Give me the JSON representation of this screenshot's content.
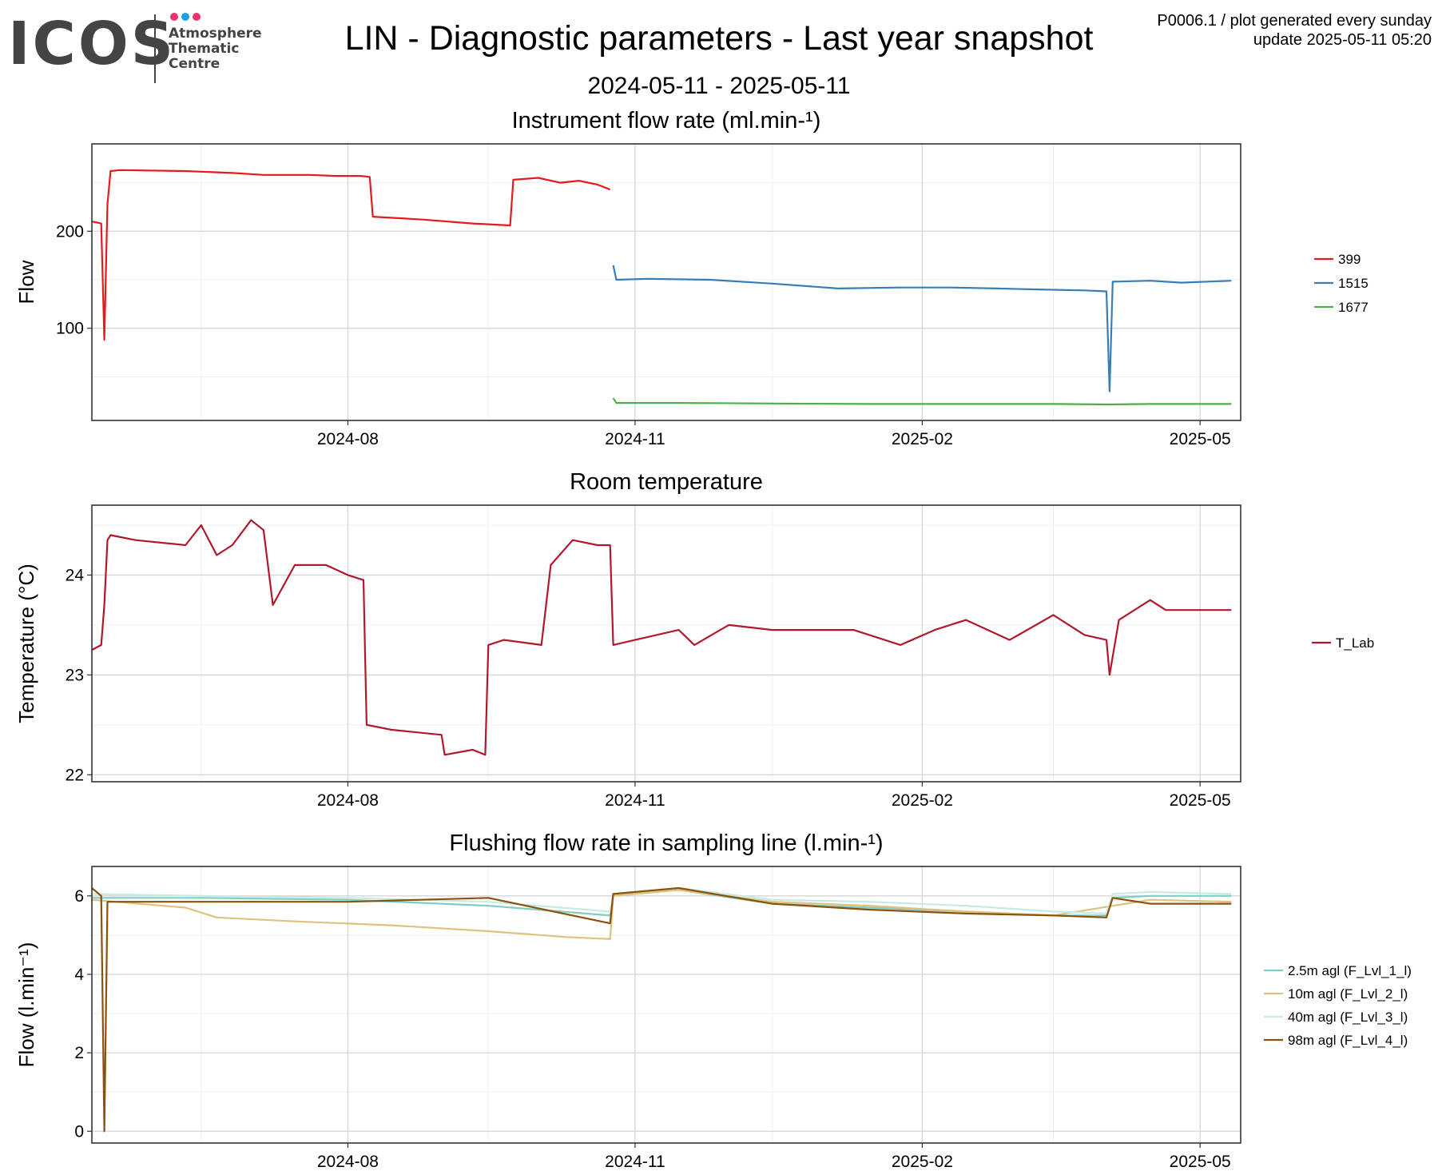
{
  "logo": {
    "text": "ICOS",
    "sub1": "Atmosphere",
    "sub2": "Thematic",
    "sub3": "Centre",
    "dot_colors": [
      "#e8336d",
      "#1ba1e2",
      "#e8336d"
    ]
  },
  "header": {
    "title": "LIN - Diagnostic parameters - Last year snapshot",
    "date_range": "2024-05-11 - 2025-05-11",
    "meta_line1": "P0006.1 / plot generated every sunday",
    "meta_line2": "update  2025-05-11 05:20"
  },
  "chart_data": [
    {
      "type": "line",
      "title": "Instrument flow rate (ml.min-¹)",
      "ylabel": "Flow",
      "xlim": [
        "2024-05-11",
        "2025-05-14"
      ],
      "ylim": [
        5,
        290
      ],
      "xticks": [
        "2024-08",
        "2024-11",
        "2025-02",
        "2025-05"
      ],
      "yticks": [
        100,
        200
      ],
      "grid": true,
      "legend_position": "right",
      "series": [
        {
          "name": "399",
          "color": "#e41a1c",
          "x": [
            "2024-05-11",
            "2024-05-14",
            "2024-05-15",
            "2024-05-16",
            "2024-05-17",
            "2024-05-20",
            "2024-06-10",
            "2024-06-25",
            "2024-07-05",
            "2024-07-20",
            "2024-07-28",
            "2024-08-05",
            "2024-08-08",
            "2024-08-09",
            "2024-08-25",
            "2024-09-10",
            "2024-09-22",
            "2024-09-23",
            "2024-10-01",
            "2024-10-08",
            "2024-10-14",
            "2024-10-20",
            "2024-10-24"
          ],
          "y": [
            210,
            208,
            88,
            228,
            262,
            263,
            262,
            260,
            258,
            258,
            257,
            257,
            256,
            215,
            212,
            208,
            206,
            253,
            255,
            250,
            252,
            248,
            243
          ]
        },
        {
          "name": "1515",
          "color": "#377eb8",
          "x": [
            "2024-10-25",
            "2024-10-26",
            "2024-11-05",
            "2024-11-25",
            "2024-12-15",
            "2025-01-05",
            "2025-01-25",
            "2025-02-10",
            "2025-02-25",
            "2025-03-10",
            "2025-03-25",
            "2025-04-01",
            "2025-04-02",
            "2025-04-03",
            "2025-04-15",
            "2025-04-25",
            "2025-05-11"
          ],
          "y": [
            165,
            150,
            151,
            150,
            146,
            141,
            142,
            142,
            141,
            140,
            139,
            138,
            35,
            148,
            149,
            147,
            149
          ]
        },
        {
          "name": "1677",
          "color": "#4daf4a",
          "x": [
            "2024-10-25",
            "2024-10-26",
            "2024-11-15",
            "2024-12-15",
            "2025-01-15",
            "2025-02-15",
            "2025-03-15",
            "2025-04-02",
            "2025-04-15",
            "2025-05-11"
          ],
          "y": [
            28,
            23,
            23,
            22.5,
            22,
            22,
            22,
            21.5,
            22,
            22
          ]
        }
      ]
    },
    {
      "type": "line",
      "title": "Room temperature",
      "ylabel": "Temperature (°C)",
      "xlim": [
        "2024-05-11",
        "2025-05-14"
      ],
      "ylim": [
        21.93,
        24.7
      ],
      "xticks": [
        "2024-08",
        "2024-11",
        "2025-02",
        "2025-05"
      ],
      "yticks": [
        22,
        23,
        24
      ],
      "grid": true,
      "legend_position": "right",
      "series": [
        {
          "name": "T_Lab",
          "color": "#b2182b",
          "x": [
            "2024-05-11",
            "2024-05-14",
            "2024-05-15",
            "2024-05-16",
            "2024-05-17",
            "2024-05-25",
            "2024-06-10",
            "2024-06-15",
            "2024-06-20",
            "2024-06-25",
            "2024-07-01",
            "2024-07-05",
            "2024-07-08",
            "2024-07-15",
            "2024-07-25",
            "2024-08-01",
            "2024-08-06",
            "2024-08-07",
            "2024-08-15",
            "2024-08-31",
            "2024-09-01",
            "2024-09-10",
            "2024-09-14",
            "2024-09-15",
            "2024-09-20",
            "2024-10-02",
            "2024-10-05",
            "2024-10-12",
            "2024-10-20",
            "2024-10-24",
            "2024-10-25",
            "2024-11-01",
            "2024-11-15",
            "2024-11-20",
            "2024-12-01",
            "2024-12-15",
            "2025-01-01",
            "2025-01-10",
            "2025-01-25",
            "2025-02-05",
            "2025-02-15",
            "2025-03-01",
            "2025-03-15",
            "2025-03-25",
            "2025-04-01",
            "2025-04-02",
            "2025-04-05",
            "2025-04-15",
            "2025-04-20",
            "2025-05-11"
          ],
          "y": [
            23.25,
            23.3,
            23.7,
            24.35,
            24.4,
            24.35,
            24.3,
            24.5,
            24.2,
            24.3,
            24.55,
            24.45,
            23.7,
            24.1,
            24.1,
            24.0,
            23.95,
            22.5,
            22.45,
            22.4,
            22.2,
            22.25,
            22.2,
            23.3,
            23.35,
            23.3,
            24.1,
            24.35,
            24.3,
            24.3,
            23.3,
            23.35,
            23.45,
            23.3,
            23.5,
            23.45,
            23.45,
            23.45,
            23.3,
            23.45,
            23.55,
            23.35,
            23.6,
            23.4,
            23.35,
            23.0,
            23.55,
            23.75,
            23.65,
            23.65
          ]
        }
      ]
    },
    {
      "type": "line",
      "title": "Flushing flow rate in sampling line (l.min-¹)",
      "ylabel": "Flow (l.min⁻¹)",
      "xlim": [
        "2024-05-11",
        "2025-05-14"
      ],
      "ylim": [
        -0.3,
        6.75
      ],
      "xticks": [
        "2024-08",
        "2024-11",
        "2025-02",
        "2025-05"
      ],
      "yticks": [
        0,
        2,
        4,
        6
      ],
      "grid": true,
      "legend_position": "right",
      "series": [
        {
          "name": "2.5m agl (F_Lvl_1_l)",
          "color": "#80cdc1",
          "x": [
            "2024-05-11",
            "2024-06-15",
            "2024-08-01",
            "2024-09-15",
            "2024-10-24",
            "2024-10-25",
            "2024-11-15",
            "2024-12-15",
            "2025-01-15",
            "2025-02-15",
            "2025-03-15",
            "2025-04-01",
            "2025-04-03",
            "2025-04-15",
            "2025-05-11"
          ],
          "y": [
            5.95,
            5.95,
            5.9,
            5.75,
            5.5,
            6.0,
            6.15,
            5.8,
            5.7,
            5.6,
            5.5,
            5.5,
            5.95,
            6.0,
            6.0
          ]
        },
        {
          "name": "10m agl (F_Lvl_2_l)",
          "color": "#dfc27d",
          "x": [
            "2024-05-11",
            "2024-06-10",
            "2024-06-20",
            "2024-07-15",
            "2024-08-15",
            "2024-09-15",
            "2024-10-10",
            "2024-10-24",
            "2024-10-25",
            "2024-11-15",
            "2024-12-15",
            "2025-01-15",
            "2025-02-15",
            "2025-03-15",
            "2025-04-15",
            "2025-05-11"
          ],
          "y": [
            5.9,
            5.7,
            5.45,
            5.35,
            5.25,
            5.1,
            4.95,
            4.9,
            6.0,
            6.15,
            5.85,
            5.75,
            5.6,
            5.5,
            5.9,
            5.85
          ]
        },
        {
          "name": "40m agl (F_Lvl_3_l)",
          "color": "#c7eae5",
          "x": [
            "2024-05-11",
            "2024-06-15",
            "2024-08-01",
            "2024-09-15",
            "2024-10-24",
            "2024-10-25",
            "2024-11-15",
            "2024-12-15",
            "2025-01-15",
            "2025-02-15",
            "2025-03-15",
            "2025-04-01",
            "2025-04-03",
            "2025-04-15",
            "2025-05-11"
          ],
          "y": [
            6.05,
            6.0,
            5.95,
            5.85,
            5.6,
            6.05,
            6.2,
            5.9,
            5.85,
            5.75,
            5.6,
            5.55,
            6.05,
            6.1,
            6.05
          ]
        },
        {
          "name": "98m agl (F_Lvl_4_l)",
          "color": "#8c510a",
          "x": [
            "2024-05-11",
            "2024-05-14",
            "2024-05-15",
            "2024-05-16",
            "2024-06-15",
            "2024-08-01",
            "2024-09-15",
            "2024-10-24",
            "2024-10-25",
            "2024-11-15",
            "2024-12-15",
            "2025-01-15",
            "2025-02-15",
            "2025-03-15",
            "2025-04-01",
            "2025-04-03",
            "2025-04-15",
            "2025-05-11"
          ],
          "y": [
            6.2,
            6.0,
            0.0,
            5.85,
            5.85,
            5.85,
            5.95,
            5.3,
            6.05,
            6.2,
            5.8,
            5.65,
            5.55,
            5.5,
            5.45,
            5.95,
            5.8,
            5.8
          ]
        }
      ]
    }
  ]
}
